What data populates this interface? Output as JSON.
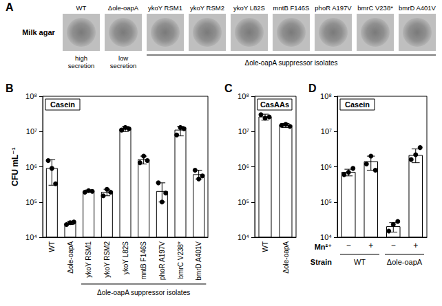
{
  "panel_a": {
    "label": "A",
    "row_label": "Milk agar",
    "columns": [
      "WT",
      "Δole-oapA",
      "ykoY RSM1",
      "ykoY RSM2",
      "ykoY L82S",
      "mntB F146S",
      "phoR A197V",
      "bmrC V238*",
      "bmrD A401V"
    ],
    "notes": [
      {
        "column": "WT",
        "text": "high secretion"
      },
      {
        "column": "Δole-oapA",
        "text": "low secretion"
      }
    ],
    "group": {
      "label": "Δole-oapA suppressor isolates",
      "columns": [
        "ykoY RSM1",
        "ykoY RSM2",
        "ykoY L82S",
        "mntB F146S",
        "phoR A197V",
        "bmrC V238*",
        "bmrD A401V"
      ]
    }
  },
  "chart_data": [
    {
      "panel": "B",
      "type": "bar",
      "title": "Casein",
      "ylabel": "CFU mL⁻¹",
      "categories": [
        "WT",
        "Δole-oapA",
        "ykoY RSM1",
        "ykoY RSM2",
        "ykoY L82S",
        "mntB F146S",
        "phoR A197V",
        "bmrC V238*",
        "bmrD A401V"
      ],
      "values": [
        900000,
        25000,
        200000,
        190000,
        12000000,
        1600000,
        200000,
        11000000,
        600000
      ],
      "points": [
        [
          1500000,
          900000,
          330000
        ],
        [
          23000,
          26000,
          27000
        ],
        [
          190000,
          210000,
          200000
        ],
        [
          150000,
          230000,
          190000
        ],
        [
          11000000,
          13000000,
          12000000
        ],
        [
          1300000,
          2000000,
          1500000
        ],
        [
          350000,
          100000,
          180000
        ],
        [
          8000000,
          13000000,
          12000000
        ],
        [
          800000,
          450000,
          550000
        ]
      ],
      "error_bars": [
        [
          300000,
          1600000
        ],
        [
          23000,
          28000
        ],
        [
          190000,
          220000
        ],
        [
          150000,
          230000
        ],
        [
          10000000,
          14000000
        ],
        [
          1200000,
          2000000
        ],
        [
          100000,
          350000
        ],
        [
          7500000,
          14000000
        ],
        [
          450000,
          800000
        ]
      ],
      "group": {
        "label": "Δole-oapA suppressor isolates",
        "categories": [
          "ykoY RSM1",
          "ykoY RSM2",
          "ykoY L82S",
          "mntB F146S",
          "phoR A197V",
          "bmrC V238*",
          "bmrD A401V"
        ]
      },
      "log": "y",
      "ylim": [
        10000,
        100000000
      ],
      "yticks": [
        {
          "value": 10000,
          "label": "10⁴"
        },
        {
          "value": 100000,
          "label": "10⁵"
        },
        {
          "value": 1000000,
          "label": "10⁶"
        },
        {
          "value": 10000000,
          "label": "10⁷"
        },
        {
          "value": 100000000,
          "label": "10⁸"
        }
      ],
      "color": "#ffffff",
      "grid": false
    },
    {
      "panel": "C",
      "type": "bar",
      "title": "CasAAs",
      "categories": [
        "WT",
        "Δole-oapA"
      ],
      "values": [
        26000000,
        15000000
      ],
      "points": [
        [
          30000000,
          24000000,
          26000000
        ],
        [
          15000000,
          16000000,
          14000000
        ]
      ],
      "error_bars": [
        [
          21000000,
          31000000
        ],
        [
          13000000,
          17000000
        ]
      ],
      "log": "y",
      "ylim": [
        10000,
        100000000
      ],
      "yticks": [
        {
          "value": 10000,
          "label": "10⁴"
        },
        {
          "value": 100000,
          "label": "10⁵"
        },
        {
          "value": 1000000,
          "label": "10⁶"
        },
        {
          "value": 10000000,
          "label": "10⁷"
        },
        {
          "value": 100000000,
          "label": "10⁸"
        }
      ],
      "color": "#ffffff",
      "grid": false
    },
    {
      "panel": "D",
      "type": "bar",
      "title": "Casein",
      "categories": [
        "−",
        "+",
        "−",
        "+"
      ],
      "category_label": "Mn²⁺",
      "strain": [
        "WT",
        "WT",
        "Δole-oapA",
        "Δole-oapA"
      ],
      "strain_label": "Strain",
      "values": [
        700000,
        1400000,
        20000,
        2100000
      ],
      "points": [
        [
          600000,
          700000,
          900000
        ],
        [
          1200000,
          2000000,
          800000
        ],
        [
          15000,
          23000,
          28000
        ],
        [
          1600000,
          2200000,
          3500000
        ]
      ],
      "error_bars": [
        [
          550000,
          850000
        ],
        [
          800000,
          2000000
        ],
        [
          14000,
          26000
        ],
        [
          1300000,
          3200000
        ]
      ],
      "log": "y",
      "ylim": [
        10000,
        100000000
      ],
      "yticks": [
        {
          "value": 10000,
          "label": "10⁴"
        },
        {
          "value": 100000,
          "label": "10⁵"
        },
        {
          "value": 1000000,
          "label": "10⁶"
        },
        {
          "value": 10000000,
          "label": "10⁷"
        },
        {
          "value": 100000000,
          "label": "10⁸"
        }
      ],
      "color": "#ffffff",
      "grid": false
    }
  ]
}
